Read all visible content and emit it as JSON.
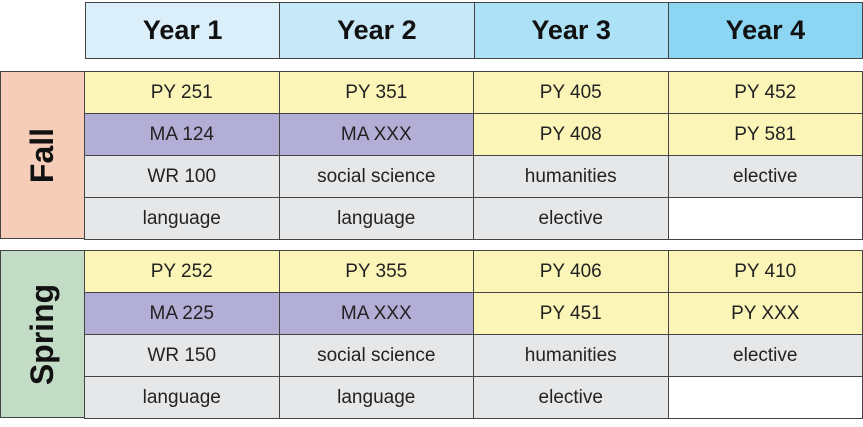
{
  "header": {
    "years": [
      "Year 1",
      "Year 2",
      "Year 3",
      "Year 4"
    ],
    "colors": [
      "#dbeffa",
      "#c6e8f8",
      "#ade1f6",
      "#8dd6f3"
    ]
  },
  "fall": {
    "label": "Fall",
    "label_color": "#f5cdb8",
    "rows": [
      [
        "PY 251",
        "MA 124",
        "WR 100",
        "language"
      ],
      [
        "PY 351",
        "MA XXX",
        "social science",
        "language"
      ],
      [
        "PY 405",
        "PY 408",
        "humanities",
        "elective"
      ],
      [
        "PY 452",
        "PY 581",
        "elective",
        ""
      ]
    ]
  },
  "spring": {
    "label": "Spring",
    "label_color": "#c3dcc6",
    "rows": [
      [
        "PY 252",
        "MA 225",
        "WR 150",
        "language"
      ],
      [
        "PY 355",
        "MA XXX",
        "social science",
        "language"
      ],
      [
        "PY 406",
        "PY 451",
        "humanities",
        "elective"
      ],
      [
        "PY 410",
        "PY XXX",
        "elective",
        ""
      ]
    ]
  },
  "category_colors": {
    "physics": "#fbf5b8",
    "math": "#b3aed6",
    "general": "#e6e7e8"
  }
}
